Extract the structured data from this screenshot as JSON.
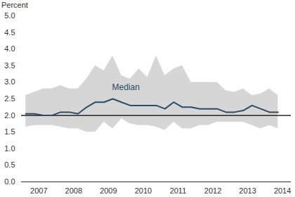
{
  "chart_data": {
    "type": "line",
    "y_label": "Percent",
    "x": [
      2007.125,
      2007.375,
      2007.625,
      2007.875,
      2008.125,
      2008.375,
      2008.625,
      2008.875,
      2009.125,
      2009.375,
      2009.625,
      2009.875,
      2010.125,
      2010.375,
      2010.625,
      2010.875,
      2011.125,
      2011.375,
      2011.625,
      2011.875,
      2012.125,
      2012.375,
      2012.625,
      2012.875,
      2013.125,
      2013.375,
      2013.625,
      2013.875,
      2014.125,
      2014.375
    ],
    "series": [
      {
        "color": "#2b4c66",
        "values": [
          2.05,
          2.05,
          2.0,
          2.0,
          2.1,
          2.1,
          2.05,
          2.25,
          2.4,
          2.4,
          2.5,
          2.4,
          2.3,
          2.3,
          2.3,
          2.3,
          2.2,
          2.4,
          2.25,
          2.25,
          2.2,
          2.2,
          2.2,
          2.1,
          2.1,
          2.15,
          2.3,
          2.2,
          2.1,
          2.1
        ]
      }
    ],
    "band": {
      "color": "#d6d6d6",
      "lower": [
        1.65,
        1.7,
        1.7,
        1.7,
        1.65,
        1.6,
        1.6,
        1.5,
        1.5,
        1.8,
        1.6,
        1.9,
        1.75,
        1.7,
        1.7,
        1.65,
        1.55,
        1.8,
        1.6,
        1.6,
        1.7,
        1.7,
        1.8,
        1.8,
        1.8,
        1.8,
        1.7,
        1.6,
        1.7,
        1.6
      ],
      "upper": [
        2.6,
        2.7,
        2.8,
        2.8,
        2.9,
        2.8,
        2.8,
        3.1,
        3.5,
        3.35,
        3.8,
        3.2,
        3.1,
        3.4,
        3.15,
        3.8,
        3.2,
        3.4,
        3.5,
        3.0,
        3.0,
        3.0,
        3.0,
        2.75,
        2.7,
        2.8,
        2.6,
        2.65,
        2.8,
        2.6
      ]
    },
    "reference_line": 2.0,
    "annotations": [
      {
        "text": "Median",
        "x": 2010.0,
        "y": 2.85
      }
    ],
    "xlim": [
      2007,
      2014.75
    ],
    "xticks": [
      {
        "value": 2007.5,
        "label": "2007"
      },
      {
        "value": 2008.5,
        "label": "2008"
      },
      {
        "value": 2009.5,
        "label": "2009"
      },
      {
        "value": 2010.5,
        "label": "2010"
      },
      {
        "value": 2011.5,
        "label": "2011"
      },
      {
        "value": 2012.5,
        "label": "2012"
      },
      {
        "value": 2013.5,
        "label": "2013"
      },
      {
        "value": 2014.5,
        "label": "2014"
      }
    ],
    "ylim": [
      0,
      5
    ],
    "yticks": [
      {
        "value": 0,
        "label": "0.0"
      },
      0.5,
      {
        "value": 1,
        "label": "1.0"
      },
      1.5,
      {
        "value": 2,
        "label": "2.0"
      },
      2.5,
      {
        "value": 3,
        "label": "3.0"
      },
      3.5,
      {
        "value": 4,
        "label": "4.0"
      },
      4.5,
      {
        "value": 5,
        "label": "5.0"
      }
    ],
    "grid": false
  }
}
